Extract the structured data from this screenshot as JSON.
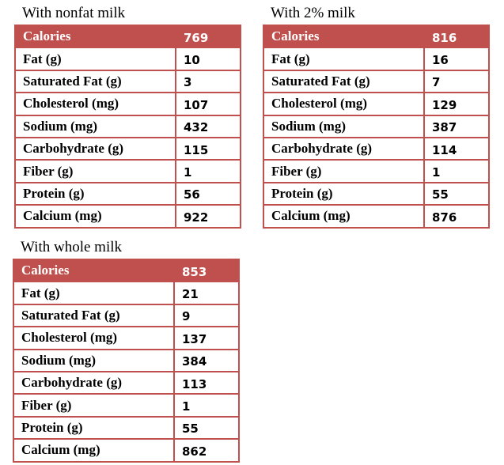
{
  "tables": [
    {
      "title": "With nonfat milk",
      "rows": [
        [
          "Calories",
          769
        ],
        [
          "Fat (g)",
          10
        ],
        [
          "Saturated Fat (g)",
          3
        ],
        [
          "Cholesterol (mg)",
          107
        ],
        [
          "Sodium (mg)",
          432
        ],
        [
          "Carbohydrate (g)",
          115
        ],
        [
          "Fiber (g)",
          1
        ],
        [
          "Protein (g)",
          56
        ],
        [
          "Calcium (mg)",
          922
        ]
      ]
    },
    {
      "title": "With 2% milk",
      "rows": [
        [
          "Calories",
          816
        ],
        [
          "Fat (g)",
          16
        ],
        [
          "Saturated Fat (g)",
          7
        ],
        [
          "Cholesterol (mg)",
          129
        ],
        [
          "Sodium (mg)",
          387
        ],
        [
          "Carbohydrate (g)",
          114
        ],
        [
          "Fiber (g)",
          1
        ],
        [
          "Protein (g)",
          55
        ],
        [
          "Calcium (mg)",
          876
        ]
      ]
    },
    {
      "title": "With whole milk",
      "rows": [
        [
          "Calories",
          853
        ],
        [
          "Fat (g)",
          21
        ],
        [
          "Saturated Fat (g)",
          9
        ],
        [
          "Cholesterol (mg)",
          137
        ],
        [
          "Sodium (mg)",
          384
        ],
        [
          "Carbohydrate (g)",
          113
        ],
        [
          "Fiber (g)",
          1
        ],
        [
          "Protein (g)",
          55
        ],
        [
          "Calcium (mg)",
          862
        ]
      ]
    }
  ]
}
